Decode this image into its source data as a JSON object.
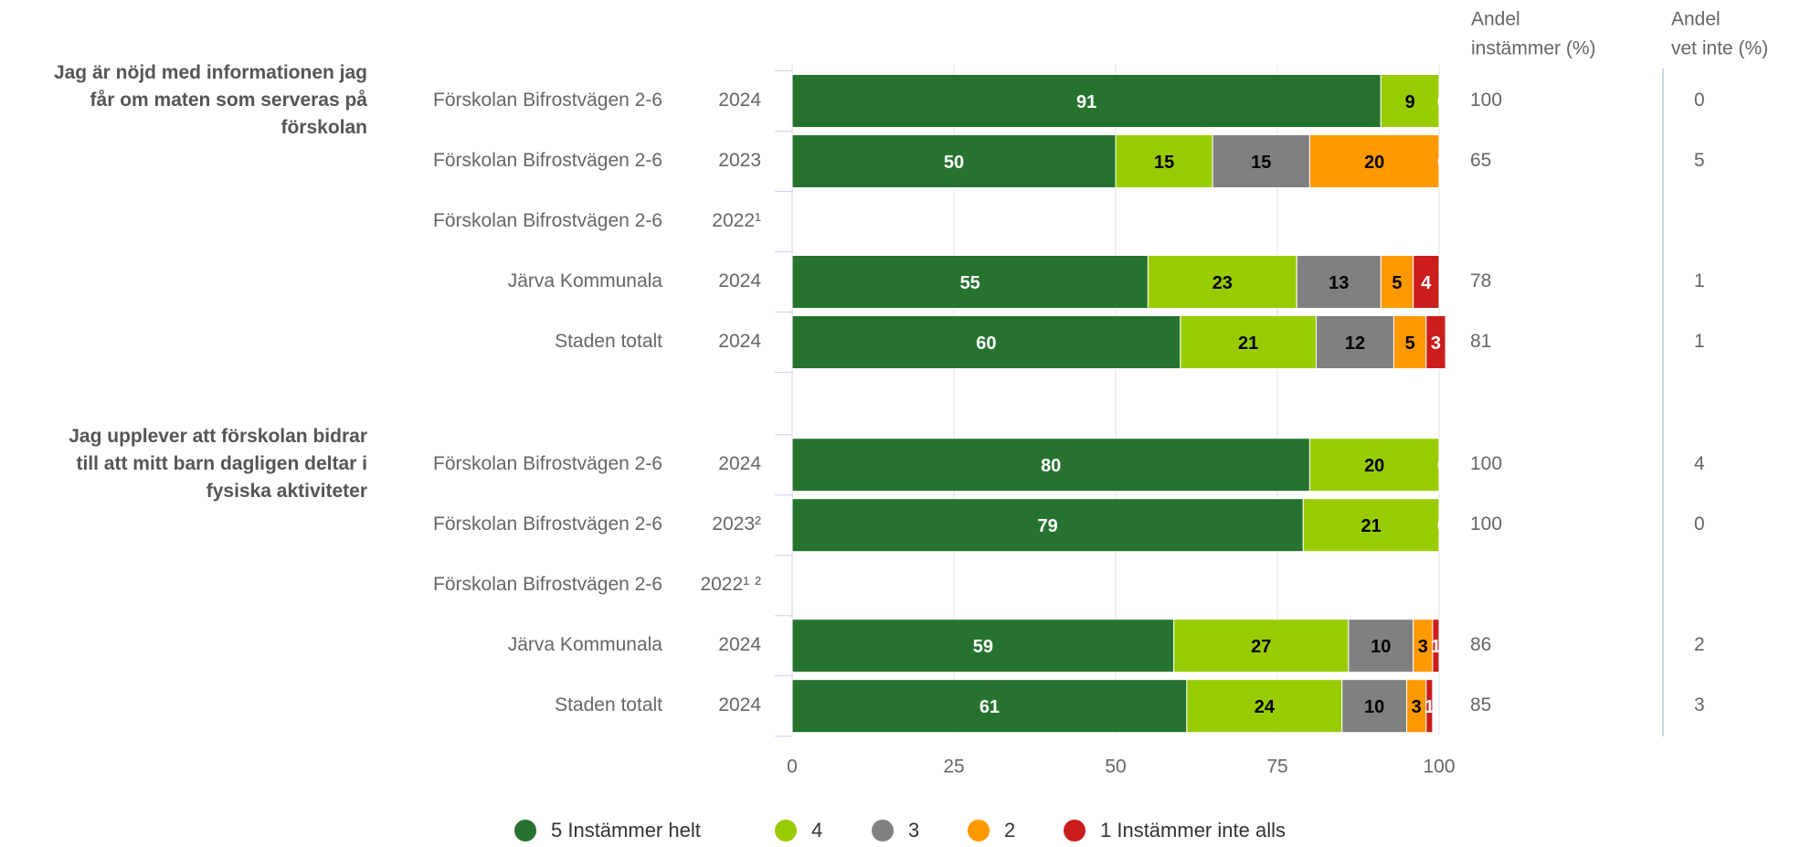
{
  "chart_data": {
    "type": "stacked-bar-horizontal",
    "headers": [
      [
        "Andel",
        "instämmer (%)"
      ],
      [
        "Andel",
        "vet inte (%)"
      ]
    ],
    "series": [
      {
        "name": "5 Instämmer helt",
        "color": "#267330"
      },
      {
        "name": "4",
        "color": "#99cc00"
      },
      {
        "name": "3",
        "color": "#808080"
      },
      {
        "name": "2",
        "color": "#ff9900"
      },
      {
        "name": "1 Instämmer inte alls",
        "color": "#cc1d1d"
      }
    ],
    "xlim": [
      0,
      100
    ],
    "xticks": [
      0,
      25,
      50,
      75,
      100
    ],
    "grid": true,
    "groups": [
      {
        "question": [
          "Jag är nöjd med informationen jag",
          "får om maten som serveras på",
          "förskolan"
        ],
        "rows": [
          {
            "name": "Förskolan Bifrostvägen 2-6",
            "year": "2024",
            "values": [
              91,
              9,
              0,
              0,
              0
            ],
            "share_agree": 100,
            "share_dont_know": 0
          },
          {
            "name": "Förskolan Bifrostvägen 2-6",
            "year": "2023",
            "values": [
              50,
              15,
              15,
              20,
              0
            ],
            "share_agree": 65,
            "share_dont_know": 5
          },
          {
            "name": "Förskolan Bifrostvägen 2-6",
            "year": "2022¹",
            "values": [
              null,
              null,
              null,
              null,
              null
            ],
            "share_agree": null,
            "share_dont_know": null
          },
          {
            "name": "Järva Kommunala",
            "year": "2024",
            "values": [
              55,
              23,
              13,
              5,
              4
            ],
            "share_agree": 78,
            "share_dont_know": 1
          },
          {
            "name": "Staden totalt",
            "year": "2024",
            "values": [
              60,
              21,
              12,
              5,
              3
            ],
            "share_agree": 81,
            "share_dont_know": 1
          }
        ]
      },
      {
        "question": [
          "Jag upplever att förskolan bidrar",
          "till att mitt barn dagligen deltar i",
          "fysiska aktiviteter"
        ],
        "rows": [
          {
            "name": "Förskolan Bifrostvägen 2-6",
            "year": "2024",
            "values": [
              80,
              20,
              0,
              0,
              0
            ],
            "share_agree": 100,
            "share_dont_know": 4
          },
          {
            "name": "Förskolan Bifrostvägen 2-6",
            "year": "2023²",
            "values": [
              79,
              21,
              0,
              0,
              0
            ],
            "share_agree": 100,
            "share_dont_know": 0
          },
          {
            "name": "Förskolan Bifrostvägen 2-6",
            "year": "2022¹ ²",
            "values": [
              null,
              null,
              null,
              null,
              null
            ],
            "share_agree": null,
            "share_dont_know": null
          },
          {
            "name": "Järva Kommunala",
            "year": "2024",
            "values": [
              59,
              27,
              10,
              3,
              1
            ],
            "share_agree": 86,
            "share_dont_know": 2
          },
          {
            "name": "Staden totalt",
            "year": "2024",
            "values": [
              61,
              24,
              10,
              3,
              1
            ],
            "share_agree": 85,
            "share_dont_know": 3
          }
        ]
      }
    ]
  }
}
